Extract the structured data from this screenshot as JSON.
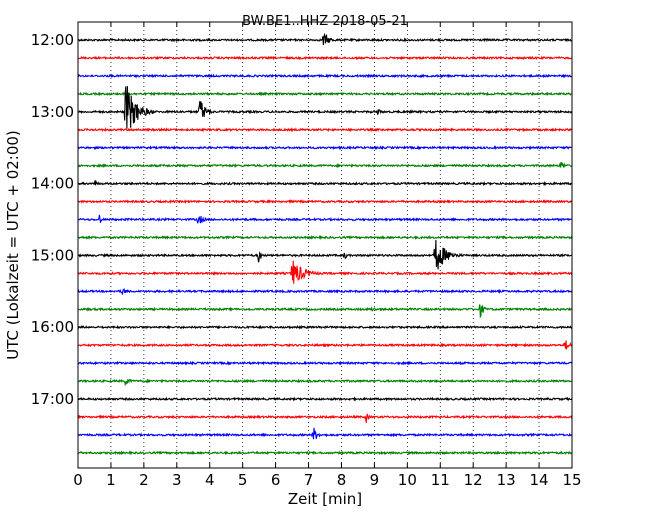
{
  "chart_data": {
    "type": "line",
    "title": "BW.BE1..HHZ 2018-05-21",
    "xlabel": "Zeit  [min]",
    "ylabel": "UTC (Lokalzeit = UTC + 02:00)",
    "xlim": [
      0,
      15
    ],
    "x_ticks": [
      "0",
      "1",
      "2",
      "3",
      "4",
      "5",
      "6",
      "7",
      "8",
      "9",
      "10",
      "11",
      "12",
      "13",
      "14",
      "15"
    ],
    "y_tick_labels": [
      "12:00",
      "13:00",
      "14:00",
      "15:00",
      "16:00",
      "17:00"
    ],
    "grid": "vertical dotted",
    "colors": [
      "#000000",
      "#ff0000",
      "#0000ff",
      "#008000"
    ],
    "traces": [
      {
        "start": "12:00",
        "color": "#000000",
        "events": [
          {
            "t": 7.45,
            "amp": 0.5,
            "dur": 0.6
          }
        ]
      },
      {
        "start": "12:15",
        "color": "#ff0000",
        "events": []
      },
      {
        "start": "12:30",
        "color": "#0000ff",
        "events": []
      },
      {
        "start": "12:45",
        "color": "#008000",
        "events": []
      },
      {
        "start": "13:00",
        "color": "#000000",
        "events": [
          {
            "t": 1.45,
            "amp": 2.1,
            "dur": 0.9
          },
          {
            "t": 3.7,
            "amp": 1.0,
            "dur": 0.5
          },
          {
            "t": 9.1,
            "amp": 0.25,
            "dur": 0.3
          }
        ]
      },
      {
        "start": "13:15",
        "color": "#ff0000",
        "events": []
      },
      {
        "start": "13:30",
        "color": "#0000ff",
        "events": []
      },
      {
        "start": "13:45",
        "color": "#008000",
        "events": [
          {
            "t": 14.65,
            "amp": 0.35,
            "dur": 0.4
          }
        ]
      },
      {
        "start": "14:00",
        "color": "#000000",
        "events": [
          {
            "t": 0.5,
            "amp": 0.3,
            "dur": 0.2
          }
        ]
      },
      {
        "start": "14:15",
        "color": "#ff0000",
        "events": []
      },
      {
        "start": "14:30",
        "color": "#0000ff",
        "events": [
          {
            "t": 0.65,
            "amp": 0.45,
            "dur": 0.15
          },
          {
            "t": 3.65,
            "amp": 0.4,
            "dur": 0.5
          }
        ]
      },
      {
        "start": "14:45",
        "color": "#008000",
        "events": []
      },
      {
        "start": "15:00",
        "color": "#000000",
        "events": [
          {
            "t": 5.5,
            "amp": 0.8,
            "dur": 0.15
          },
          {
            "t": 8.1,
            "amp": 0.4,
            "dur": 0.15
          },
          {
            "t": 10.85,
            "amp": 1.3,
            "dur": 0.9
          }
        ]
      },
      {
        "start": "15:15",
        "color": "#ff0000",
        "events": [
          {
            "t": 6.5,
            "amp": 1.0,
            "dur": 1.0
          }
        ]
      },
      {
        "start": "15:30",
        "color": "#0000ff",
        "events": [
          {
            "t": 1.35,
            "amp": 0.3,
            "dur": 0.4
          }
        ]
      },
      {
        "start": "15:45",
        "color": "#008000",
        "events": [
          {
            "t": 8.9,
            "amp": 0.15,
            "dur": 1.0
          },
          {
            "t": 12.2,
            "amp": 0.6,
            "dur": 0.35
          }
        ]
      },
      {
        "start": "16:00",
        "color": "#000000",
        "events": []
      },
      {
        "start": "16:15",
        "color": "#ff0000",
        "events": [
          {
            "t": 14.8,
            "amp": 0.4,
            "dur": 0.4
          }
        ]
      },
      {
        "start": "16:30",
        "color": "#0000ff",
        "events": []
      },
      {
        "start": "16:45",
        "color": "#008000",
        "events": [
          {
            "t": 1.45,
            "amp": 0.35,
            "dur": 0.35
          }
        ]
      },
      {
        "start": "17:00",
        "color": "#000000",
        "events": []
      },
      {
        "start": "17:15",
        "color": "#ff0000",
        "events": [
          {
            "t": 8.75,
            "amp": 0.4,
            "dur": 0.2
          }
        ]
      },
      {
        "start": "17:30",
        "color": "#0000ff",
        "events": [
          {
            "t": 7.15,
            "amp": 0.55,
            "dur": 0.4
          }
        ]
      },
      {
        "start": "17:45",
        "color": "#008000",
        "events": []
      }
    ]
  }
}
